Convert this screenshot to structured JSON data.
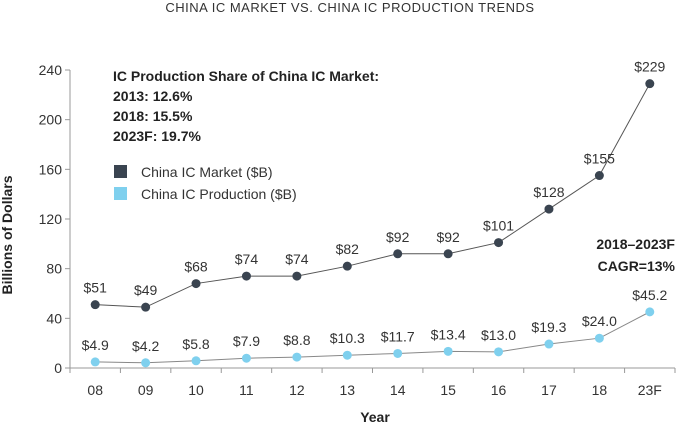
{
  "chart_data": {
    "type": "line",
    "title": "CHINA IC MARKET VS. CHINA IC PRODUCTION TRENDS",
    "xlabel": "Year",
    "ylabel": "Billions of Dollars",
    "categories": [
      "08",
      "09",
      "10",
      "11",
      "12",
      "13",
      "14",
      "15",
      "16",
      "17",
      "18",
      "23F"
    ],
    "ylim": [
      0,
      240
    ],
    "yticks": [
      "0",
      "40",
      "80",
      "120",
      "160",
      "200",
      "240"
    ],
    "grid": false,
    "legend_position": "top-left",
    "series": [
      {
        "name": "China IC Market ($B)",
        "color": "#3a4450",
        "values": [
          51,
          49,
          68,
          74,
          74,
          82,
          92,
          92,
          101,
          128,
          155,
          229
        ],
        "labels": [
          "$51",
          "$49",
          "$68",
          "$74",
          "$74",
          "$82",
          "$92",
          "$92",
          "$101",
          "$128",
          "$155",
          "$229"
        ]
      },
      {
        "name": "China IC Production ($B)",
        "color": "#7fd0ee",
        "values": [
          4.9,
          4.2,
          5.8,
          7.9,
          8.8,
          10.3,
          11.7,
          13.4,
          13.0,
          19.3,
          24.0,
          45.2
        ],
        "labels": [
          "$4.9",
          "$4.2",
          "$5.8",
          "$7.9",
          "$8.8",
          "$10.3",
          "$11.7",
          "$13.4",
          "$13.0",
          "$19.3",
          "$24.0",
          "$45.2"
        ]
      }
    ],
    "annotation": {
      "heading": "IC Production Share of China IC Market:",
      "lines": [
        "2013: 12.6%",
        "2018: 15.5%",
        "2023F: 19.7%"
      ]
    },
    "cagr": {
      "line1": "2018–2023F",
      "line2": "CAGR=13%"
    }
  }
}
